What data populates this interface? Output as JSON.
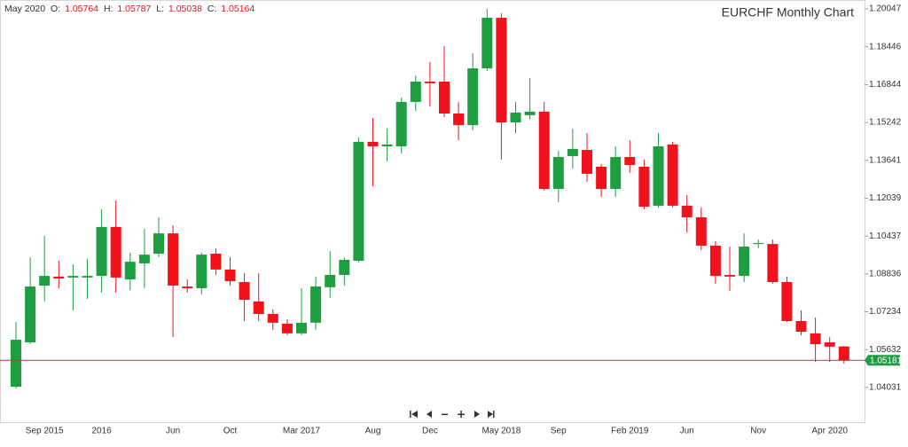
{
  "chart_data": {
    "type": "candlestick",
    "title": "EURCHF Monthly Chart",
    "header_period": "May 2020",
    "header_labels": [
      "O:",
      "H:",
      "L:",
      "C:"
    ],
    "categories": [
      null,
      null,
      "Sep 2015",
      null,
      null,
      null,
      "2016",
      null,
      null,
      null,
      null,
      "Jun",
      null,
      null,
      null,
      "Oct",
      null,
      null,
      null,
      null,
      "Mar 2017",
      null,
      null,
      null,
      null,
      "Aug",
      null,
      null,
      null,
      "Dec",
      null,
      null,
      null,
      null,
      "May 2018",
      null,
      null,
      null,
      "Sep",
      null,
      null,
      null,
      null,
      "Feb 2019",
      null,
      null,
      null,
      "Jun",
      null,
      null,
      null,
      null,
      "Nov",
      null,
      null,
      null,
      null,
      "Apr 2020",
      null
    ],
    "open": [
      1.0406,
      1.0594,
      1.0834,
      1.0872,
      1.0868,
      1.0868,
      1.0875,
      1.1082,
      1.086,
      1.0928,
      1.0969,
      1.1055,
      1.083,
      1.0823,
      1.0969,
      1.0902,
      1.0849,
      1.0767,
      1.0714,
      1.0673,
      1.0632,
      1.0677,
      1.0827,
      1.0879,
      1.0939,
      1.1442,
      1.1423,
      1.1423,
      1.1611,
      1.1697,
      1.1697,
      1.1562,
      1.1513,
      1.1753,
      1.1967,
      1.1524,
      1.1555,
      1.157,
      1.1243,
      1.1382,
      1.1408,
      1.1337,
      1.1243,
      1.1378,
      1.1337,
      1.1172,
      1.1431,
      1.1172,
      1.1123,
      1.1003,
      1.0879,
      1.0875,
      1.101,
      1.101,
      1.0849,
      1.0684,
      1.0632,
      1.0594,
      1.05764
    ],
    "high": [
      1.068,
      1.0954,
      1.1044,
      1.0939,
      1.0924,
      1.0947,
      1.1157,
      1.1194,
      1.0973,
      1.1074,
      1.1123,
      1.1089,
      1.086,
      1.0973,
      1.0992,
      1.0954,
      1.0887,
      1.0887,
      1.0733,
      1.0692,
      1.0823,
      1.0872,
      1.098,
      1.0954,
      1.1461,
      1.1543,
      1.1498,
      1.163,
      1.1723,
      1.178,
      1.1847,
      1.1611,
      1.1817,
      1.2005,
      1.1986,
      1.1611,
      1.1712,
      1.1611,
      1.1404,
      1.1498,
      1.1479,
      1.1348,
      1.1423,
      1.1449,
      1.1367,
      1.1479,
      1.1442,
      1.1217,
      1.1164,
      1.1022,
      1.0999,
      1.1055,
      1.1029,
      1.1029,
      1.0872,
      1.0729,
      1.0699,
      1.0616,
      1.05787
    ],
    "low": [
      1.0398,
      1.0586,
      1.0767,
      1.0823,
      1.0729,
      1.0778,
      1.0804,
      1.0804,
      1.0815,
      1.0823,
      1.0954,
      1.0616,
      1.0804,
      1.0797,
      1.0879,
      1.0834,
      1.0684,
      1.0684,
      1.0647,
      1.0624,
      1.0624,
      1.0647,
      1.0782,
      1.0834,
      1.0932,
      1.1254,
      1.1359,
      1.1393,
      1.1573,
      1.1592,
      1.1547,
      1.1449,
      1.1491,
      1.1742,
      1.1367,
      1.1479,
      1.1536,
      1.1236,
      1.1187,
      1.1329,
      1.1273,
      1.1209,
      1.1209,
      1.1311,
      1.1157,
      1.1164,
      1.1164,
      1.1059,
      1.0984,
      1.0842,
      1.0812,
      1.0849,
      1.0992,
      1.0842,
      1.068,
      1.0624,
      1.0511,
      1.0511,
      1.05038
    ],
    "close": [
      1.0605,
      1.083,
      1.0875,
      1.0864,
      1.0875,
      1.0875,
      1.1082,
      1.0868,
      1.0935,
      1.0965,
      1.1055,
      1.0834,
      1.0823,
      1.0965,
      1.0902,
      1.0853,
      1.0774,
      1.0714,
      1.0677,
      1.0632,
      1.0677,
      1.083,
      1.0879,
      1.0943,
      1.1442,
      1.1423,
      1.1431,
      1.1611,
      1.1697,
      1.169,
      1.1562,
      1.1513,
      1.1753,
      1.1967,
      1.1524,
      1.1566,
      1.157,
      1.1243,
      1.1378,
      1.1412,
      1.1307,
      1.1243,
      1.1378,
      1.1344,
      1.1168,
      1.1423,
      1.1172,
      1.1123,
      1.1003,
      1.0875,
      1.0872,
      1.0999,
      1.1014,
      1.0849,
      1.0684,
      1.0639,
      1.0586,
      1.0576,
      1.05164
    ],
    "up_color": "#1f9e41",
    "down_color": "#f2121c",
    "current_price": 1.05181,
    "current_line_color": "#a0463a",
    "ylim": [
      1.026,
      1.20422
    ],
    "yticks": [
      1.04031,
      1.05632,
      1.07234,
      1.08836,
      1.10437,
      1.12039,
      1.13641,
      1.15242,
      1.16844,
      1.18446,
      1.20047
    ]
  }
}
